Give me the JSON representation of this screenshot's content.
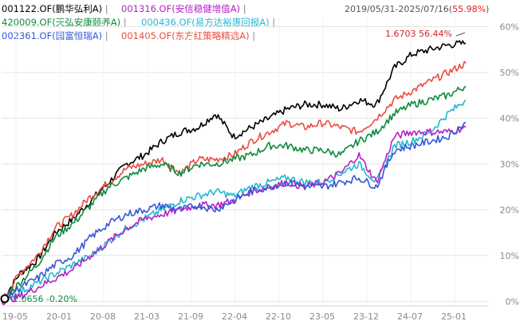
{
  "header": {
    "date_range": "2019/05/31-2025/07/16",
    "range_change": "55.98%"
  },
  "legend": [
    {
      "code": "001122.OF",
      "name": "鹏华弘利A",
      "color": "#000000"
    },
    {
      "code": "001316.OF",
      "name": "安信稳健增值A",
      "color": "#b620c6"
    },
    {
      "code": "420009.OF",
      "name": "天弘安康颐养A",
      "color": "#0c8a3c"
    },
    {
      "code": "000436.OF",
      "name": "易方达裕惠回报A",
      "color": "#22b8d4"
    },
    {
      "code": "002361.OF",
      "name": "国富恒瑞A",
      "color": "#3458d6"
    },
    {
      "code": "001405.OF",
      "name": "东方红策略精选A",
      "color": "#ea4d3f"
    }
  ],
  "annotations": {
    "start_value": "1.0656",
    "start_pct": "-0.20%",
    "end_value": "1.6703",
    "end_pct": "56.44%"
  },
  "chart_data": {
    "type": "line",
    "x_ticks": [
      "19-05",
      "20-01",
      "20-08",
      "21-03",
      "21-09",
      "22-04",
      "22-10",
      "23-05",
      "23-12",
      "24-07",
      "25-01"
    ],
    "yticks": [
      "0%",
      "10%",
      "20%",
      "30%",
      "40%",
      "50%",
      "60%"
    ],
    "ylim": [
      -1,
      62
    ],
    "y_unit": "%",
    "grid": true,
    "series": [
      {
        "name": "001122.OF(鹏华弘利A)",
        "color": "#000000",
        "values": [
          0,
          6,
          9,
          15,
          18,
          22,
          26,
          30,
          32,
          35,
          37,
          38,
          41,
          36,
          38,
          40,
          42,
          43,
          43,
          42,
          44,
          43,
          51,
          54,
          55,
          56,
          56.4
        ]
      },
      {
        "name": "001405.OF(东方红策略精选A)",
        "color": "#ea4d3f",
        "values": [
          0,
          6,
          10,
          16,
          19,
          23,
          26,
          29,
          30,
          31,
          28,
          31,
          31,
          32,
          35,
          37,
          39,
          38,
          39,
          38,
          37,
          40,
          44,
          46,
          48,
          50,
          52
        ]
      },
      {
        "name": "420009.OF(天弘安康颐养A)",
        "color": "#0c8a3c",
        "values": [
          0,
          4,
          8,
          14,
          17,
          21,
          25,
          27,
          29,
          30,
          28,
          30,
          30,
          31,
          32,
          34,
          34,
          33,
          33,
          32,
          35,
          37,
          41,
          43,
          44,
          45,
          47
        ]
      },
      {
        "name": "000436.OF(易方达裕惠回报A)",
        "color": "#22b8d4",
        "values": [
          0,
          2,
          4,
          6,
          8,
          10,
          13,
          16,
          18,
          20,
          22,
          23,
          24,
          23,
          25,
          26,
          27,
          26,
          26,
          28,
          30,
          26,
          34,
          35,
          37,
          41,
          44
        ]
      },
      {
        "name": "001316.OF(安信稳健增值A)",
        "color": "#b620c6",
        "values": [
          0,
          1,
          3,
          5,
          7,
          10,
          13,
          16,
          18,
          19,
          20,
          21,
          21,
          22,
          24,
          25,
          26,
          25,
          26,
          28,
          32,
          26,
          36,
          37,
          37,
          37,
          38
        ]
      },
      {
        "name": "002361.OF(国富恒瑞A)",
        "color": "#3458d6",
        "values": [
          0,
          3,
          5,
          8,
          10,
          14,
          17,
          19,
          20,
          21,
          20,
          21,
          20,
          22,
          24,
          25,
          26,
          25,
          25,
          26,
          27,
          25,
          33,
          34,
          35,
          36,
          39
        ]
      }
    ]
  }
}
